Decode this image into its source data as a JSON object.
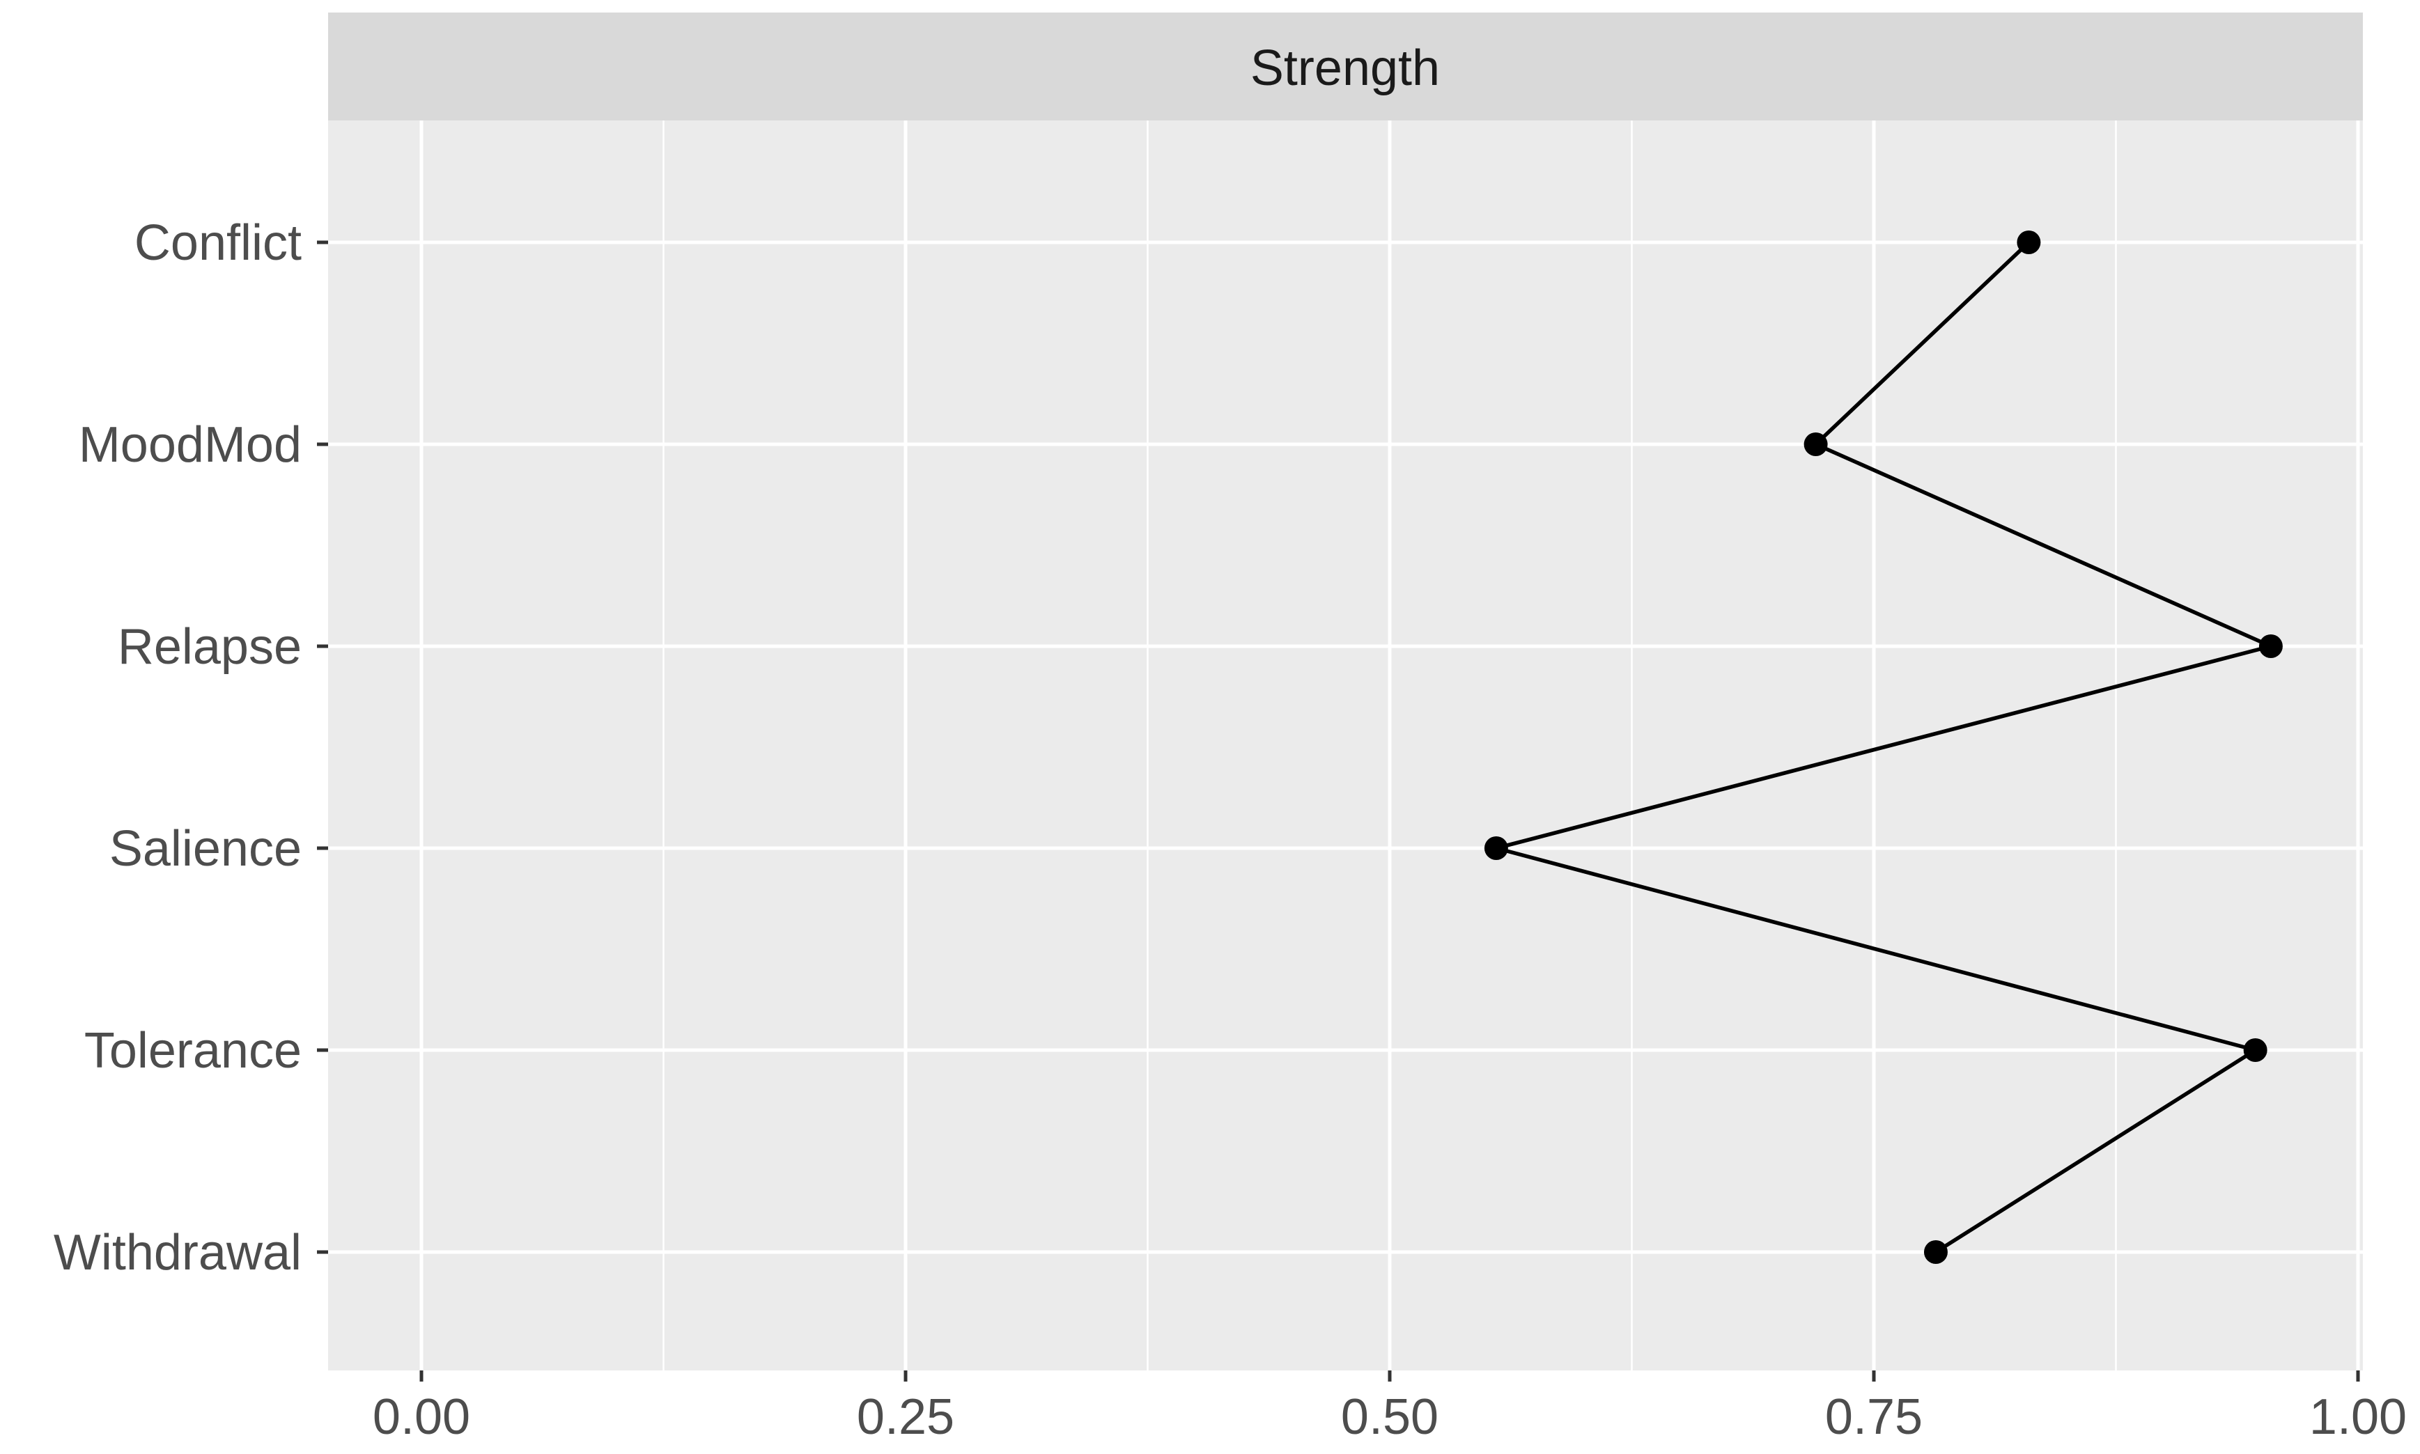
{
  "chart_data": {
    "type": "line",
    "facet": "Strength",
    "categories": [
      "Conflict",
      "MoodMod",
      "Relapse",
      "Salience",
      "Tolerance",
      "Withdrawal"
    ],
    "values": [
      0.83,
      0.72,
      0.955,
      0.555,
      0.947,
      0.782
    ],
    "xlim": [
      0,
      1
    ],
    "x_ticks": [
      0,
      0.25,
      0.5,
      0.75,
      1
    ],
    "x_tick_labels": [
      "0.00",
      "0.25",
      "0.50",
      "0.75",
      "1.00"
    ],
    "title": "",
    "xlabel": "",
    "ylabel": "",
    "grid": true,
    "legend": "none",
    "colors": {
      "panel": "#ebebeb",
      "strip": "#d9d9d9",
      "grid": "#ffffff",
      "line": "#000000",
      "tick": "#333333"
    }
  }
}
